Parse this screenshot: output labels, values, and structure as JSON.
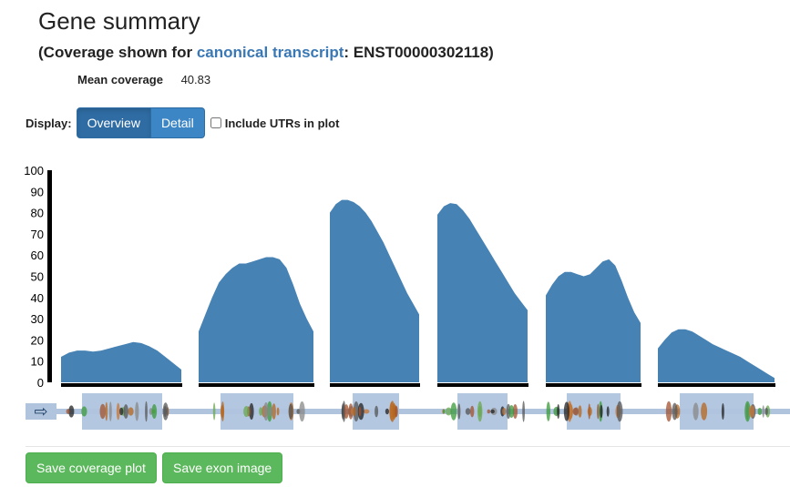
{
  "header": {
    "title": "Gene summary",
    "subtitle_prefix": "(Coverage shown for ",
    "subtitle_link": "canonical transcript",
    "subtitle_suffix": ": ENST00000302118)"
  },
  "stats": {
    "mean_label": "Mean coverage",
    "mean_value": "40.83"
  },
  "display": {
    "label": "Display:",
    "options": [
      "Overview",
      "Detail"
    ],
    "selected": "Overview",
    "utr_label": "Include UTRs in plot",
    "utr_checked": false
  },
  "buttons": {
    "save_plot": "Save coverage plot",
    "save_exon": "Save exon image"
  },
  "colors": {
    "coverage": "#4682b4",
    "exon_box": "#b0c4de",
    "accent": "#3a78b5",
    "save": "#5cb85c"
  },
  "icons": {
    "strand": "arrow-right-icon"
  },
  "chart_data": {
    "type": "area",
    "ylim": [
      0,
      100
    ],
    "y_ticks": [
      "100",
      "90",
      "80",
      "70",
      "60",
      "50",
      "40",
      "30",
      "20",
      "10",
      "0"
    ],
    "series": [
      {
        "exon": 1,
        "values": [
          12,
          14,
          15,
          15,
          14.5,
          15,
          16,
          17,
          18,
          19,
          18.5,
          17,
          15,
          12,
          9,
          6
        ]
      },
      {
        "exon": 2,
        "values": [
          24,
          32,
          40,
          47,
          51,
          54,
          56,
          56,
          57,
          58,
          59,
          59,
          58,
          54,
          46,
          37,
          30,
          24
        ]
      },
      {
        "exon": 3,
        "values": [
          80,
          84,
          86,
          86,
          85,
          83,
          80,
          76,
          71,
          66,
          60,
          54,
          48,
          42,
          37,
          32
        ]
      },
      {
        "exon": 4,
        "values": [
          79,
          83,
          84.5,
          84,
          81,
          77,
          72,
          67,
          62,
          57,
          52,
          47,
          42,
          38,
          34
        ]
      },
      {
        "exon": 5,
        "values": [
          41,
          46,
          50,
          52,
          52,
          51,
          50,
          51,
          54,
          57,
          58,
          55,
          48,
          40,
          33,
          28
        ]
      },
      {
        "exon": 6,
        "values": [
          16,
          20,
          23.5,
          25,
          25,
          24,
          22,
          20,
          18,
          16.5,
          15,
          13.5,
          12,
          10,
          8,
          6,
          4,
          2
        ]
      }
    ]
  }
}
